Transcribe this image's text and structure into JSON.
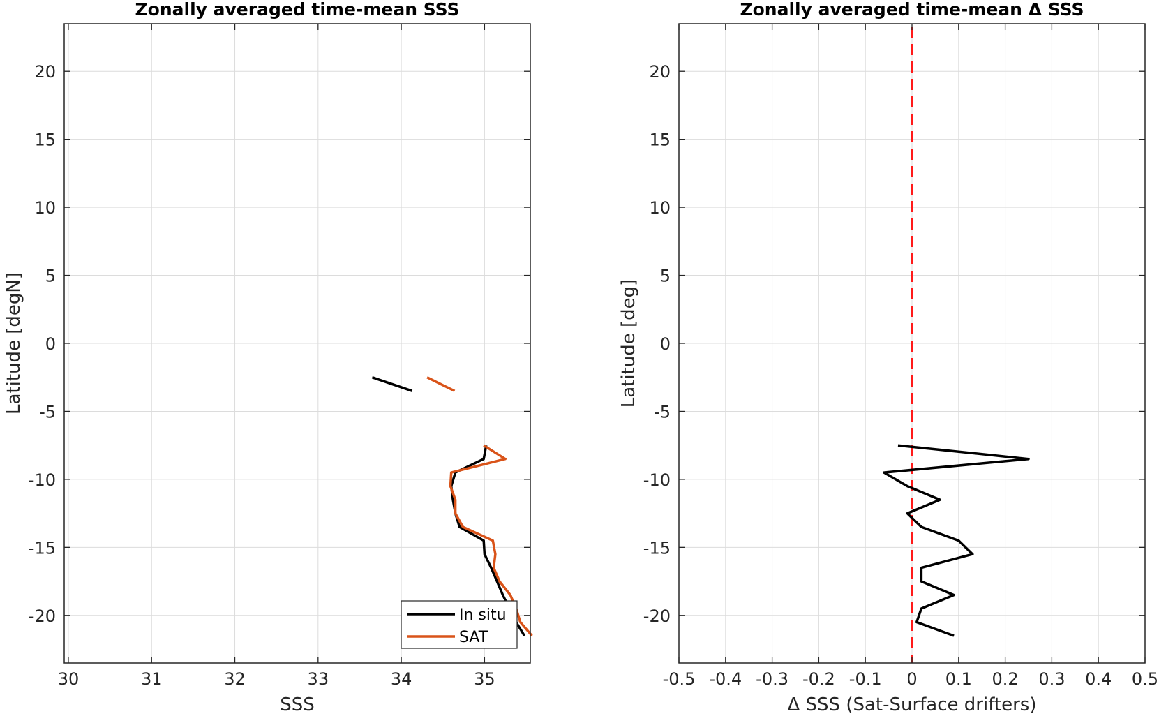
{
  "chart_data": [
    {
      "type": "line",
      "title": "Zonally averaged time-mean SSS",
      "xlabel": "SSS",
      "ylabel": "Latitude [degN]",
      "xlim": [
        29.95,
        35.55
      ],
      "ylim": [
        -23.5,
        23.5
      ],
      "xticks": [
        30,
        31,
        32,
        33,
        34,
        35
      ],
      "xtick_labels": [
        "30",
        "31",
        "32",
        "33",
        "34",
        "35"
      ],
      "yticks": [
        -20,
        -15,
        -10,
        -5,
        0,
        5,
        10,
        15,
        20
      ],
      "ytick_labels": [
        "-20",
        "-15",
        "-10",
        "-5",
        "0",
        "5",
        "10",
        "15",
        "20"
      ],
      "grid": true,
      "legend_position": "bottom-right",
      "series": [
        {
          "name": "In situ",
          "color": "#000000",
          "segments": [
            [
              [
                33.65,
                -2.5
              ],
              [
                34.13,
                -3.5
              ]
            ],
            [
              [
                35.02,
                -7.5
              ],
              [
                34.99,
                -8.5
              ],
              [
                34.65,
                -9.5
              ],
              [
                34.6,
                -10.5
              ],
              [
                34.62,
                -11.5
              ],
              [
                34.65,
                -12.5
              ],
              [
                34.7,
                -13.5
              ],
              [
                34.99,
                -14.5
              ],
              [
                35.0,
                -15.5
              ],
              [
                35.08,
                -16.5
              ],
              [
                35.15,
                -17.5
              ],
              [
                35.22,
                -18.5
              ],
              [
                35.3,
                -19.5
              ],
              [
                35.38,
                -20.5
              ],
              [
                35.48,
                -21.5
              ]
            ]
          ]
        },
        {
          "name": "SAT",
          "color": "#d95319",
          "segments": [
            [
              [
                34.31,
                -2.5
              ],
              [
                34.64,
                -3.5
              ]
            ],
            [
              [
                34.99,
                -7.5
              ],
              [
                35.25,
                -8.5
              ],
              [
                34.6,
                -9.5
              ],
              [
                34.59,
                -10.5
              ],
              [
                34.65,
                -11.5
              ],
              [
                34.65,
                -12.5
              ],
              [
                34.74,
                -13.5
              ],
              [
                35.1,
                -14.5
              ],
              [
                35.13,
                -15.5
              ],
              [
                35.11,
                -16.5
              ],
              [
                35.18,
                -17.5
              ],
              [
                35.31,
                -18.5
              ],
              [
                35.38,
                -19.5
              ],
              [
                35.43,
                -20.5
              ],
              [
                35.57,
                -21.5
              ]
            ]
          ]
        }
      ]
    },
    {
      "type": "line",
      "title": "Zonally averaged time-mean Δ SSS",
      "xlabel": "Δ SSS (Sat-Surface drifters)",
      "ylabel": "Latitude [deg]",
      "xlim": [
        -0.5,
        0.5
      ],
      "ylim": [
        -23.5,
        23.5
      ],
      "xticks": [
        -0.5,
        -0.4,
        -0.3,
        -0.2,
        -0.1,
        0,
        0.1,
        0.2,
        0.3,
        0.4,
        0.5
      ],
      "xtick_labels": [
        "-0.5",
        "-0.4",
        "-0.3",
        "-0.2",
        "-0.1",
        "0",
        "0.1",
        "0.2",
        "0.3",
        "0.4",
        "0.5"
      ],
      "yticks": [
        -20,
        -15,
        -10,
        -5,
        0,
        5,
        10,
        15,
        20
      ],
      "ytick_labels": [
        "-20",
        "-15",
        "-10",
        "-5",
        "0",
        "5",
        "10",
        "15",
        "20"
      ],
      "grid": true,
      "reference_line": {
        "x": 0,
        "color": "#ff1a1a",
        "style": "dashed"
      },
      "series": [
        {
          "color": "#000000",
          "segments": [
            [
              [
                -0.03,
                -7.5
              ],
              [
                0.25,
                -8.5
              ],
              [
                -0.06,
                -9.5
              ],
              [
                -0.01,
                -10.5
              ],
              [
                0.06,
                -11.5
              ],
              [
                -0.01,
                -12.5
              ],
              [
                0.02,
                -13.5
              ],
              [
                0.1,
                -14.5
              ],
              [
                0.13,
                -15.5
              ],
              [
                0.02,
                -16.5
              ],
              [
                0.02,
                -17.5
              ],
              [
                0.09,
                -18.5
              ],
              [
                0.02,
                -19.5
              ],
              [
                0.01,
                -20.5
              ],
              [
                0.09,
                -21.5
              ]
            ]
          ]
        }
      ]
    }
  ]
}
